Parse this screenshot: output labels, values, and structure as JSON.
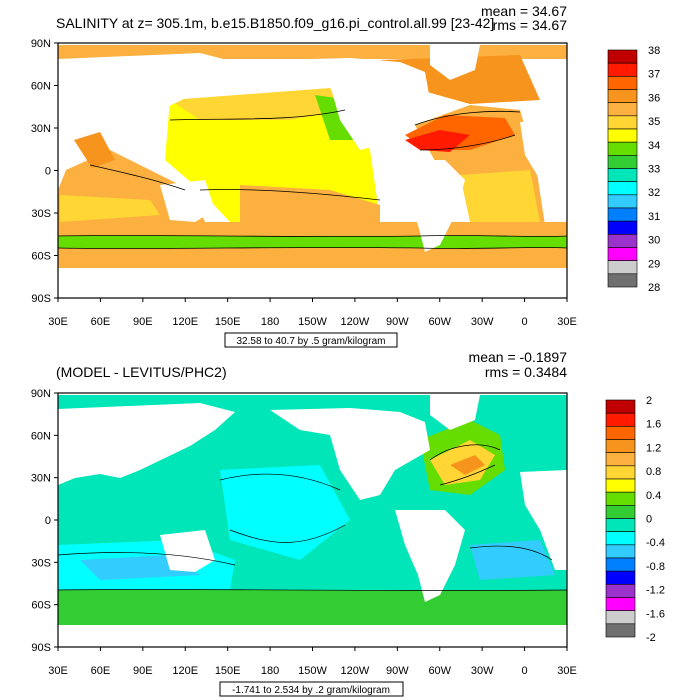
{
  "chart_data": [
    {
      "type": "heatmap",
      "title": "SALINITY at z= 305.1m, b.e15.B1850.f09_g16.pi_control.all.99 [23-42]",
      "stats": [
        "mean = 34.67",
        "rms = 34.67"
      ],
      "x_ticks": [
        "30E",
        "60E",
        "90E",
        "120E",
        "150E",
        "180",
        "150W",
        "120W",
        "90W",
        "60W",
        "30W",
        "0",
        "30E"
      ],
      "y_ticks": [
        "90N",
        "60N",
        "30N",
        "0",
        "30S",
        "60S",
        "90S"
      ],
      "range_note": "32.58 to 40.7 by .5 gram/kilogram",
      "colorbar_labels": [
        "38",
        "37",
        "36",
        "35",
        "34",
        "33",
        "32",
        "31",
        "30",
        "29",
        "28"
      ],
      "colorbar_colors": [
        "#c00000",
        "#ff1a00",
        "#ff6600",
        "#f7941d",
        "#fbb040",
        "#ffd633",
        "#ffff00",
        "#66dd00",
        "#33cc33",
        "#00e6b8",
        "#00ffff",
        "#33ccff",
        "#0080ff",
        "#0000ff",
        "#9933cc",
        "#ff00ff",
        "#cccccc",
        "#707070"
      ],
      "xlim": [
        30,
        390
      ],
      "ylim": [
        -90,
        90
      ]
    },
    {
      "type": "heatmap",
      "title": "(MODEL - LEVITUS/PHC2)",
      "stats": [
        "mean = -0.1897",
        "rms = 0.3484"
      ],
      "x_ticks": [
        "30E",
        "60E",
        "90E",
        "120E",
        "150E",
        "180",
        "150W",
        "120W",
        "90W",
        "60W",
        "30W",
        "0",
        "30E"
      ],
      "y_ticks": [
        "90N",
        "60N",
        "30N",
        "0",
        "30S",
        "60S",
        "90S"
      ],
      "range_note": "-1.741 to 2.534 by .2 gram/kilogram",
      "colorbar_labels": [
        "2",
        "1.6",
        "1.2",
        "0.8",
        "0.4",
        "0",
        "-0.4",
        "-0.8",
        "-1.2",
        "-1.6",
        "-2"
      ],
      "colorbar_colors": [
        "#c00000",
        "#ff1a00",
        "#ff6600",
        "#f7941d",
        "#fbb040",
        "#ffd633",
        "#ffff00",
        "#66dd00",
        "#33cc33",
        "#00e6b8",
        "#00ffff",
        "#33ccff",
        "#0080ff",
        "#0000ff",
        "#9933cc",
        "#ff00ff",
        "#cccccc",
        "#707070"
      ],
      "xlim": [
        30,
        390
      ],
      "ylim": [
        -90,
        90
      ]
    }
  ]
}
